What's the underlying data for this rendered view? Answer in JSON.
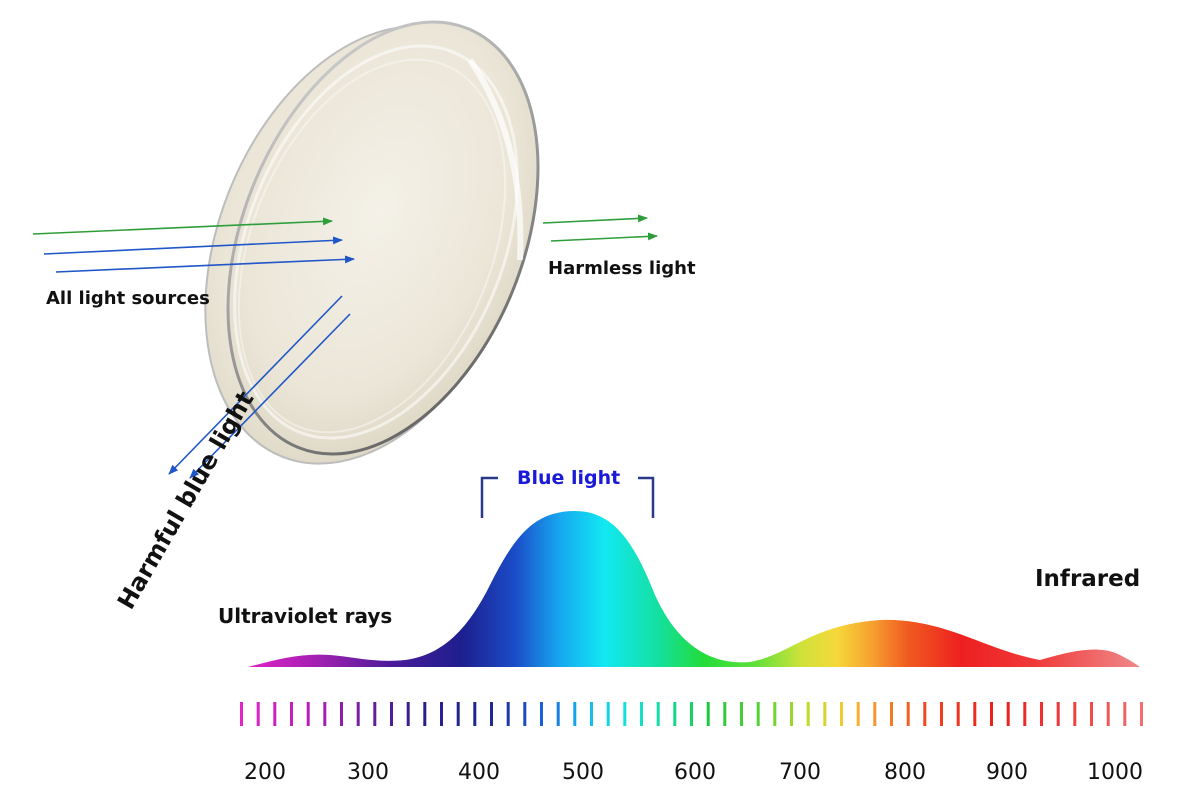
{
  "labels": {
    "all_light_sources": "All light sources",
    "harmless_light": "Harmless light",
    "harmful_blue_light": "Harmful blue light",
    "blue_light": "Blue light",
    "infrared": "Infrared",
    "ultraviolet_rays": "Ultraviolet rays"
  },
  "axis": {
    "ticks": [
      "200",
      "300",
      "400",
      "500",
      "600",
      "700",
      "800",
      "900",
      "1000"
    ]
  },
  "colors": {
    "incoming_green": "#2e9e3a",
    "incoming_blue": "#1f56c8",
    "reflected_blue": "#1f56c8",
    "blue_light_label": "#1a1ad8"
  }
}
